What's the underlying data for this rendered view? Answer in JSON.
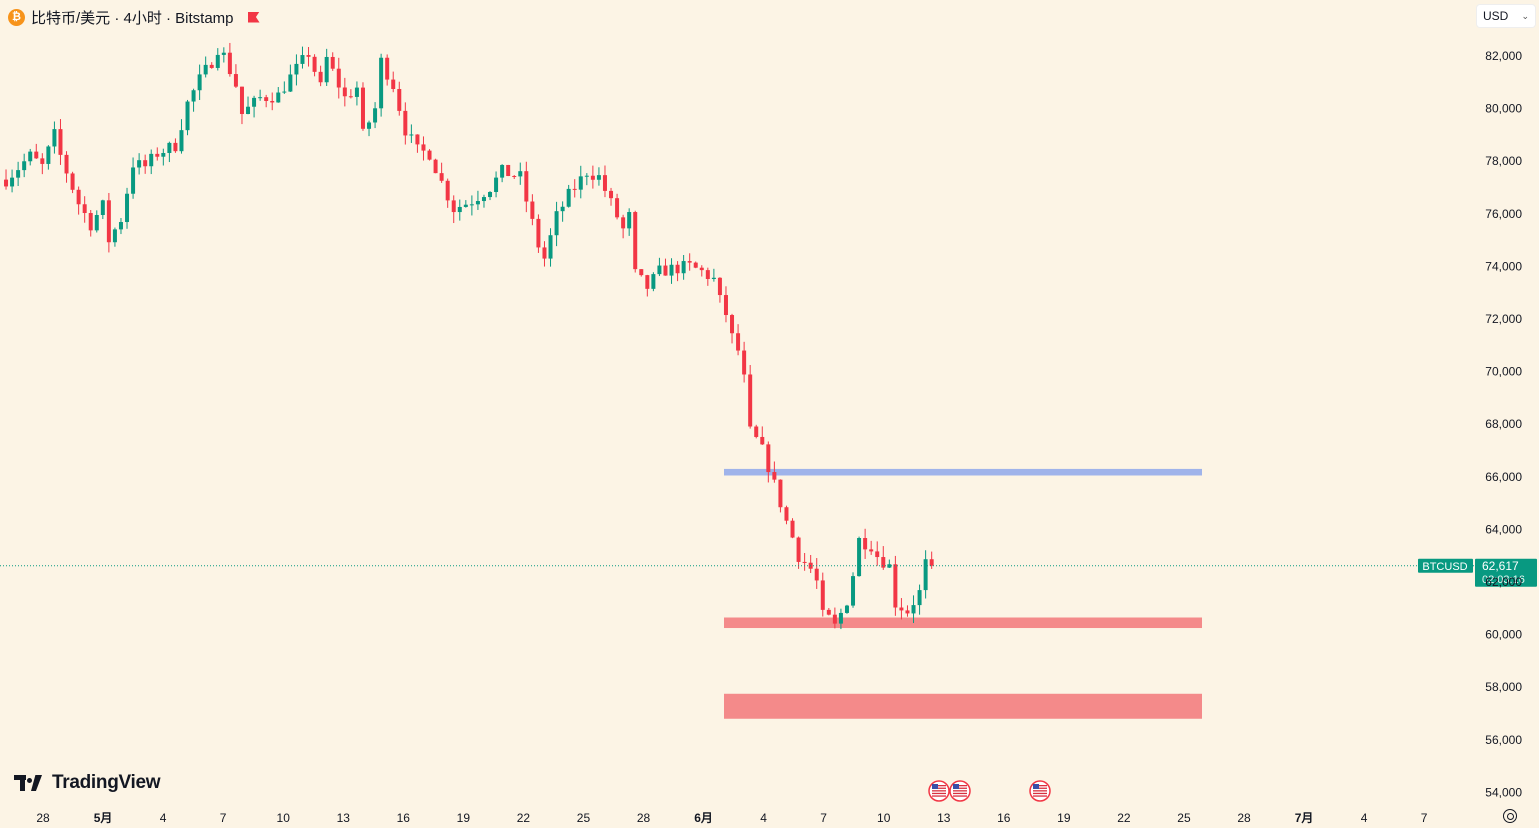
{
  "header": {
    "coin_glyph": "₿",
    "title": "比特币/美元 · 4小时 · Bitstamp"
  },
  "currency_select": {
    "value": "USD"
  },
  "price_axis": {
    "ticks": [
      "82,000",
      "80,000",
      "78,000",
      "76,000",
      "74,000",
      "72,000",
      "70,000",
      "68,000",
      "66,000",
      "64,000",
      "62,000",
      "60,000",
      "58,000",
      "56,000",
      "54,000"
    ]
  },
  "time_axis": {
    "ticks": [
      "28",
      "5月",
      "4",
      "7",
      "10",
      "13",
      "16",
      "19",
      "22",
      "25",
      "28",
      "6月",
      "4",
      "7",
      "10",
      "13",
      "16",
      "19",
      "22",
      "25",
      "28",
      "7月",
      "4",
      "7"
    ]
  },
  "last_price": {
    "symbol": "BTCUSD",
    "price": "62,617",
    "countdown": "02:03:16",
    "value": 62617
  },
  "colors": {
    "background": "#fcf4e5",
    "up": "#089981",
    "down": "#f23645",
    "zone_resistance": "#9fb3ea",
    "zone_support": "#f48a8a"
  },
  "zones": [
    {
      "name": "resistance",
      "low": 66050,
      "high": 66300
    },
    {
      "name": "support-1",
      "low": 60250,
      "high": 60650
    },
    {
      "name": "support-2",
      "low": 56800,
      "high": 57750
    }
  ],
  "logo": {
    "text": "TradingView"
  },
  "event_markers": [
    {
      "icon": "us-flag-icon"
    },
    {
      "icon": "us-flag-icon"
    },
    {
      "icon": "us-flag-icon"
    }
  ],
  "chart_data": {
    "type": "candlestick",
    "timeframe": "4h",
    "symbol": "BTCUSD",
    "y_range": [
      53600,
      83400
    ],
    "close_path": [
      [
        0,
        77300
      ],
      [
        4,
        78200
      ],
      [
        6,
        77800
      ],
      [
        8,
        79000
      ],
      [
        9,
        78200
      ],
      [
        12,
        76400
      ],
      [
        14,
        75600
      ],
      [
        16,
        76300
      ],
      [
        17,
        75000
      ],
      [
        19,
        75800
      ],
      [
        21,
        77900
      ],
      [
        23,
        77800
      ],
      [
        25,
        78300
      ],
      [
        27,
        78500
      ],
      [
        28,
        78600
      ],
      [
        30,
        80200
      ],
      [
        32,
        81100
      ],
      [
        34,
        81800
      ],
      [
        35,
        82300
      ],
      [
        36,
        82000
      ],
      [
        38,
        80900
      ],
      [
        39,
        79800
      ],
      [
        42,
        80400
      ],
      [
        45,
        80500
      ],
      [
        47,
        81200
      ],
      [
        50,
        82100
      ],
      [
        52,
        80800
      ],
      [
        53,
        81900
      ],
      [
        56,
        80400
      ],
      [
        58,
        80800
      ],
      [
        59,
        79000
      ],
      [
        61,
        80000
      ],
      [
        62,
        81800
      ],
      [
        64,
        80900
      ],
      [
        66,
        79200
      ],
      [
        68,
        78400
      ],
      [
        70,
        78300
      ],
      [
        72,
        77200
      ],
      [
        74,
        76200
      ],
      [
        77,
        76500
      ],
      [
        80,
        77000
      ],
      [
        82,
        77600
      ],
      [
        85,
        77400
      ],
      [
        86,
        76500
      ],
      [
        88,
        74800
      ],
      [
        89,
        74300
      ],
      [
        91,
        75900
      ],
      [
        93,
        76700
      ],
      [
        96,
        77600
      ],
      [
        98,
        77400
      ],
      [
        100,
        76400
      ],
      [
        102,
        75400
      ],
      [
        103,
        75900
      ],
      [
        104,
        73700
      ],
      [
        106,
        73200
      ],
      [
        108,
        73800
      ],
      [
        110,
        73900
      ],
      [
        113,
        74000
      ],
      [
        115,
        73800
      ],
      [
        117,
        73500
      ],
      [
        118,
        72700
      ],
      [
        119,
        72200
      ],
      [
        120,
        71300
      ],
      [
        121,
        70800
      ],
      [
        122,
        69700
      ],
      [
        123,
        67700
      ],
      [
        124,
        67400
      ],
      [
        125,
        67000
      ],
      [
        126,
        66400
      ],
      [
        127,
        65700
      ],
      [
        129,
        64300
      ],
      [
        130,
        63700
      ],
      [
        131,
        63000
      ],
      [
        133,
        62500
      ],
      [
        134,
        62000
      ],
      [
        135,
        60700
      ],
      [
        136,
        60600
      ],
      [
        137,
        60300
      ],
      [
        138,
        60800
      ],
      [
        139,
        61300
      ],
      [
        140,
        62300
      ],
      [
        141,
        63600
      ],
      [
        143,
        63400
      ],
      [
        144,
        63000
      ],
      [
        146,
        62600
      ],
      [
        147,
        61200
      ],
      [
        149,
        60900
      ],
      [
        151,
        61600
      ],
      [
        152,
        62700
      ],
      [
        153,
        62600
      ]
    ]
  }
}
